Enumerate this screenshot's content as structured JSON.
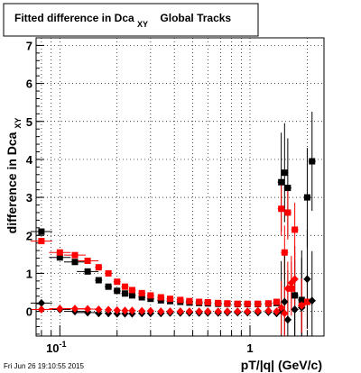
{
  "chart_data": {
    "type": "scatter",
    "title": {
      "prefix": "Fitted difference in Dca",
      "subscript": "XY",
      "suffix": "Global Tracks"
    },
    "xlabel": "pT/|q| (GeV/c)",
    "ylabel": {
      "main": "difference in Dca",
      "subscript": "XY"
    },
    "xscale": "log",
    "xlim": [
      0.075,
      2.45
    ],
    "ylim": [
      -0.65,
      7.2
    ],
    "x_tick_labels": [
      {
        "value": 0.1,
        "base": "10",
        "exp": "-1"
      },
      {
        "value": 1,
        "base": "1",
        "exp": ""
      }
    ],
    "y_ticks": [
      0,
      1,
      2,
      3,
      4,
      5,
      6,
      7
    ],
    "grid": true,
    "timestamp": "Fri Jun 26 19:10:55 2015",
    "series": [
      {
        "color": "#000000",
        "marker": "square",
        "points": [
          [
            0.08,
            2.1
          ],
          [
            0.1,
            1.42
          ],
          [
            0.12,
            1.3
          ],
          [
            0.14,
            1.05
          ],
          [
            0.16,
            0.82
          ],
          [
            0.18,
            0.65
          ],
          [
            0.2,
            0.54
          ],
          [
            0.22,
            0.47
          ],
          [
            0.24,
            0.42
          ],
          [
            0.27,
            0.37
          ],
          [
            0.3,
            0.33
          ],
          [
            0.34,
            0.29
          ],
          [
            0.38,
            0.27
          ],
          [
            0.43,
            0.25
          ],
          [
            0.48,
            0.23
          ],
          [
            0.54,
            0.22
          ],
          [
            0.6,
            0.21
          ],
          [
            0.68,
            0.2
          ],
          [
            0.76,
            0.2
          ],
          [
            0.86,
            0.19
          ],
          [
            0.97,
            0.19
          ],
          [
            1.1,
            0.19
          ],
          [
            1.25,
            0.2
          ],
          [
            1.38,
            0.22
          ],
          [
            1.46,
            3.4
          ],
          [
            1.52,
            3.65
          ],
          [
            1.58,
            3.25
          ],
          [
            1.72,
            0.42
          ],
          [
            1.87,
            0.3
          ],
          [
            2.0,
            3.0
          ],
          [
            2.12,
            3.95
          ]
        ]
      },
      {
        "color": "#ff0000",
        "marker": "square",
        "points": [
          [
            0.08,
            1.85
          ],
          [
            0.1,
            1.55
          ],
          [
            0.12,
            1.48
          ],
          [
            0.14,
            1.33
          ],
          [
            0.16,
            1.16
          ],
          [
            0.18,
            1.0
          ],
          [
            0.2,
            0.78
          ],
          [
            0.22,
            0.65
          ],
          [
            0.24,
            0.56
          ],
          [
            0.27,
            0.48
          ],
          [
            0.3,
            0.42
          ],
          [
            0.34,
            0.37
          ],
          [
            0.38,
            0.33
          ],
          [
            0.43,
            0.3
          ],
          [
            0.48,
            0.27
          ],
          [
            0.54,
            0.25
          ],
          [
            0.6,
            0.24
          ],
          [
            0.68,
            0.22
          ],
          [
            0.76,
            0.21
          ],
          [
            0.86,
            0.2
          ],
          [
            0.97,
            0.2
          ],
          [
            1.1,
            0.2
          ],
          [
            1.25,
            0.21
          ],
          [
            1.38,
            0.25
          ],
          [
            1.46,
            2.7
          ],
          [
            1.52,
            1.55
          ],
          [
            1.58,
            2.6
          ],
          [
            1.65,
            0.6
          ],
          [
            1.72,
            2.15
          ],
          [
            1.87,
            0.15
          ],
          [
            2.0,
            0.25
          ]
        ]
      },
      {
        "color": "#000000",
        "marker": "diamond",
        "points": [
          [
            0.08,
            0.22
          ],
          [
            0.1,
            0.05
          ],
          [
            0.12,
            0.0
          ],
          [
            0.14,
            -0.03
          ],
          [
            0.16,
            -0.05
          ],
          [
            0.18,
            -0.05
          ],
          [
            0.2,
            -0.06
          ],
          [
            0.22,
            -0.06
          ],
          [
            0.24,
            -0.06
          ],
          [
            0.27,
            -0.05
          ],
          [
            0.3,
            -0.05
          ],
          [
            0.34,
            -0.05
          ],
          [
            0.38,
            -0.04
          ],
          [
            0.43,
            -0.04
          ],
          [
            0.48,
            -0.04
          ],
          [
            0.54,
            -0.04
          ],
          [
            0.6,
            -0.04
          ],
          [
            0.68,
            -0.04
          ],
          [
            0.76,
            -0.03
          ],
          [
            0.86,
            -0.03
          ],
          [
            0.97,
            -0.03
          ],
          [
            1.1,
            -0.03
          ],
          [
            1.25,
            -0.02
          ],
          [
            1.38,
            -0.05
          ],
          [
            1.46,
            0.02
          ],
          [
            1.52,
            0.25
          ],
          [
            1.58,
            -0.22
          ],
          [
            1.72,
            0.05
          ],
          [
            1.87,
            0.1
          ],
          [
            2.0,
            0.85
          ],
          [
            2.12,
            0.28
          ]
        ]
      },
      {
        "color": "#ff0000",
        "marker": "diamond",
        "points": [
          [
            0.08,
            0.05
          ],
          [
            0.1,
            0.07
          ],
          [
            0.12,
            0.07
          ],
          [
            0.14,
            0.06
          ],
          [
            0.16,
            0.05
          ],
          [
            0.18,
            0.04
          ],
          [
            0.2,
            0.03
          ],
          [
            0.22,
            0.02
          ],
          [
            0.24,
            0.02
          ],
          [
            0.27,
            0.01
          ],
          [
            0.3,
            0.01
          ],
          [
            0.34,
            0.0
          ],
          [
            0.38,
            0.0
          ],
          [
            0.43,
            0.0
          ],
          [
            0.48,
            0.0
          ],
          [
            0.54,
            0.0
          ],
          [
            0.6,
            0.0
          ],
          [
            0.68,
            0.0
          ],
          [
            0.76,
            0.0
          ],
          [
            0.86,
            0.0
          ],
          [
            0.97,
            0.0
          ],
          [
            1.1,
            0.01
          ],
          [
            1.25,
            0.02
          ],
          [
            1.38,
            0.0
          ],
          [
            1.46,
            0.1
          ],
          [
            1.52,
            -0.05
          ],
          [
            1.58,
            0.6
          ],
          [
            1.65,
            0.75
          ],
          [
            1.72,
            0.85
          ],
          [
            1.87,
            0.15
          ]
        ]
      }
    ]
  }
}
